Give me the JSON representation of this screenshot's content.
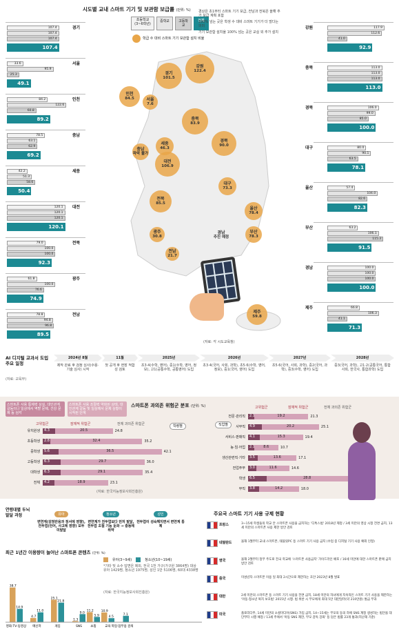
{
  "header": {
    "title": "시도별 교내 스마트 기기 및 보관함 보급률",
    "unit": "(단위: %)"
  },
  "legend": {
    "el": "초등학교 (3~6학년)",
    "mid": "중학교",
    "high": "고등학교",
    "all": "전체",
    "circle": "학급 수 대비 스마트 기기 보관함 설치 비율",
    "notes": [
      "경상은 초1부터 스마트 기기 보급, 전남과 전북은 올해 추가 보급 계획 포함",
      "100% 넘는 곳은 학생 수 대비 스마트 기기가 더 많다는 의미",
      "기기 보관함 설치율 100% 넘는 곳은 교실 외 추가 설치"
    ]
  },
  "regions_left": [
    {
      "name": "경기",
      "v": [
        "107.4",
        "107.4",
        "107.4"
      ],
      "all": "107.4"
    },
    {
      "name": "서울",
      "v": [
        "33.6",
        "95.9",
        "25.3"
      ],
      "all": "49.1"
    },
    {
      "name": "인천",
      "v": [
        "84.2",
        "122.6",
        "60.8"
      ],
      "all": "89.2"
    },
    {
      "name": "충남",
      "v": [
        "78.5",
        "63.1",
        "62.9"
      ],
      "all": "69.2"
    },
    {
      "name": "세종",
      "v": [
        "42.2",
        "51.3",
        "58.6"
      ],
      "all": "50.4"
    },
    {
      "name": "대전",
      "v": [
        "120.1",
        "120.1",
        "120.1"
      ],
      "all": "120.1"
    },
    {
      "name": "전북",
      "v": [
        "79.0",
        "100.0",
        "100.0"
      ],
      "all": "92.3"
    },
    {
      "name": "광주",
      "v": [
        "61.8",
        "100.0",
        "76.6"
      ],
      "all": "74.9"
    },
    {
      "name": "전남",
      "v": [
        "78.8",
        "94.8",
        "96.8"
      ],
      "all": "89.5"
    }
  ],
  "regions_right": [
    {
      "name": "강원",
      "v": [
        "117.9",
        "112.6",
        "41.0"
      ],
      "all": "92.9"
    },
    {
      "name": "충북",
      "v": [
        "113.0",
        "113.0",
        "113.0"
      ],
      "all": "113.0"
    },
    {
      "name": "경북",
      "v": [
        "106.0",
        "99.0",
        "85.0"
      ],
      "all": "100.0"
    },
    {
      "name": "대구",
      "v": [
        "80.0",
        "90.1",
        "63.5"
      ],
      "all": "78.1"
    },
    {
      "name": "울산",
      "v": [
        "57.4",
        "104.0",
        "82.6"
      ],
      "all": "82.3"
    },
    {
      "name": "부산",
      "v": [
        "63.2",
        "106.1",
        "115.3"
      ],
      "all": "91.5"
    },
    {
      "name": "경남",
      "v": [
        "100.0",
        "100.0",
        "100.0"
      ],
      "all": "100.0"
    },
    {
      "name": "제주",
      "v": [
        "66.8",
        "106.3",
        "41.1"
      ],
      "all": "71.3"
    }
  ],
  "map": [
    {
      "name": "경기",
      "val": "101.5"
    },
    {
      "name": "강원",
      "val": "122.4"
    },
    {
      "name": "인천",
      "val": "84.5"
    },
    {
      "name": "서울",
      "val": "7.6"
    },
    {
      "name": "충북",
      "val": "83.9"
    },
    {
      "name": "세종",
      "val": "46.3"
    },
    {
      "name": "충남",
      "val": "파악 불가"
    },
    {
      "name": "대전",
      "val": "106.9"
    },
    {
      "name": "경북",
      "val": "90.0"
    },
    {
      "name": "대구",
      "val": "73.3"
    },
    {
      "name": "전북",
      "val": "85.5"
    },
    {
      "name": "울산",
      "val": "78.4"
    },
    {
      "name": "경남",
      "val": "추진 예정"
    },
    {
      "name": "부산",
      "val": "78.3"
    },
    {
      "name": "광주",
      "val": "30.8"
    },
    {
      "name": "전남",
      "val": "21.7"
    },
    {
      "name": "제주",
      "val": "59.8"
    }
  ],
  "map_source": "(자료: 각 시도교육청)",
  "ai": {
    "title": "AI 디지털 교과서 도입 주요 일정",
    "source": "(자료: 교육부)",
    "cols": [
      "2024년 8월",
      "11월",
      "2025년",
      "2026년",
      "2027년",
      "2028년"
    ],
    "items": [
      "제작 완료 후 검정 심사(수용·기술 심사) 시작",
      "첫 공개 후 현장 적합성 검토",
      "초3·4(수학, 영어), 중1(수학, 영어, 정보), 고1(공통수학, 공통영어) 도입",
      "초3·4(국어, 사회, 과학), 초5·6(수학, 영어, 정보), 중1(국어, 영어) 도입",
      "초5·6(국어, 사회, 과학), 중2(국어, 과학), 중3(수학, 영어) 도입",
      "중3(국어, 과학), 고1·2(공통국어, 통합사회, 한국사, 통합과학) 도입"
    ]
  },
  "risk": {
    "title": "스마트폰 과의존 위험군 분포",
    "unit": "(단위: %)",
    "label_high": "고위험군",
    "label_latent": "잠재적 위험군",
    "label_total": "전체 과의존 위험군",
    "note1": "스마트폰 사용 통제력 상실, 대인관계 갈등이나 일상에서 역할 문제, 건강 문제 등 심각",
    "note2": "스마트폰 사용 조절력 약화된 상태, 대인관계 갈등 및 일상에서 문제 상황이 시작된 단계",
    "tag_school": "학령별",
    "tag_job": "직업별",
    "source": "(자료: 한국지능정보사회진흥원)",
    "school": [
      {
        "n": "유치원생",
        "h": "4.3",
        "l": "20.5",
        "t": "24.8"
      },
      {
        "n": "초등학생",
        "h": "2.8",
        "l": "32.4",
        "t": "35.2"
      },
      {
        "n": "중학생",
        "h": "5.6",
        "l": "36.5",
        "t": "42.1"
      },
      {
        "n": "고등학생",
        "h": "6.3",
        "l": "29.7",
        "t": "36.0"
      },
      {
        "n": "대학생",
        "h": "6.3",
        "l": "29.1",
        "t": "35.4"
      },
      {
        "n": "전체",
        "h": "4.2",
        "l": "18.9",
        "t": "23.1"
      }
    ],
    "job": [
      {
        "n": "전문·관리직",
        "h": "2.1",
        "l": "19.2",
        "t": "21.3"
      },
      {
        "n": "사무직",
        "h": "4.9",
        "l": "20.2",
        "t": "25.1"
      },
      {
        "n": "서비스·판매직",
        "h": "4.1",
        "l": "15.3",
        "t": "19.4"
      },
      {
        "n": "농·임·어업",
        "h": "2.1",
        "l": "8.6",
        "t": "10.7"
      },
      {
        "n": "생산관련직·기타",
        "h": "3.5",
        "l": "13.6",
        "t": "17.1"
      },
      {
        "n": "전업주부",
        "h": "3.0",
        "l": "11.6",
        "t": "14.6"
      },
      {
        "n": "학생",
        "h": "6.5",
        "l": "28.8",
        "t": "35.3"
      },
      {
        "n": "무직",
        "h": "3.8",
        "l": "14.2",
        "t": "18.0"
      }
    ]
  },
  "dev": {
    "title": "연령대별 두뇌 발달 과정",
    "groups": [
      {
        "label": "유아",
        "text": "변연계(감정반응과 정서에 영향), 전두엽(언어, 사고에 영향) 모두 미발달"
      },
      {
        "label": "청소년",
        "text": "변연계가 전두엽보다 먼저 발달, 전두엽 조절 기능 둔화 → 충동에 취약"
      },
      {
        "label": "성인",
        "text": "전두엽이 성숙해지면서 변연계 통제"
      }
    ]
  },
  "content": {
    "title": "최근 1년간 이용량이 늘어난 스마트폰 콘텐츠",
    "unit": "(단위: %)",
    "leg1": "유아(3~9세)",
    "leg2": "청소년(10~19세)",
    "note": "*기타 및 소수 답변은 제외, 전국 1천 가구(가구원 3864명) 대상 유아 1429명, 청소년 1975명, 성인 1만 5106명, 60대 4338명",
    "source": "(자료: 한국지능정보사회진흥원)",
    "cats": [
      "영화·TV·동영상",
      "메신저",
      "게임",
      "SNS",
      "쇼핑",
      "교육",
      "학업·업무용 검색"
    ],
    "a": [
      38.7,
      4.7,
      25.1,
      1.3,
      11.2,
      10.9,
      0
    ],
    "b": [
      14.9,
      11.0,
      21.8,
      9.0,
      5.9,
      4.5,
      7.1
    ]
  },
  "reg": {
    "title": "주요국 스마트 기기 사용 규제 현황",
    "rows": [
      {
        "c": "프랑스",
        "t": "3~15세 학생들의 학교 안 스마트폰 사용을 금지하는 '디톡스법' 2018년 제정 / 3세 미만의 영상 시청 전면 금지, 13세 미만의 스마트폰 사용 제한 방안 검토"
      },
      {
        "c": "네덜란드",
        "t": "올해 1월부터 교내 스마트폰, 태블릿PC 등 스마트 기기 사용 금지 (수업 중 디지털 기기 사용 예외 인정)"
      },
      {
        "c": "영국",
        "t": "올해 2월부터 정부 주도로 전국 학교에 '스마트폰 사용금지' 가이드라인 배포 / 16세 미만에 대한 스마트폰 판매 금지 방안 검토"
      },
      {
        "c": "중국",
        "t": "미성년자 스마트폰 이용 일 최대 2시간으로 제한하는 초안 2023년 8월 발표"
      },
      {
        "c": "대만",
        "t": "2세 미만의 스마트폰 등 스마트 기기 사용을 전면 금지, 18세 미만의 자녀에게 지속적인 스마트 기기 사용을 제한하는 '아동·청소년 복지 보호법' 2015년 시행. 법 위반 시 부모에게 최대 5만 대만달러(약 210만원) 벌금 부과"
      },
      {
        "c": "미국",
        "t": "플로리다주, 14세 미만의 소셜미디어(SNS) 가입 금지, 14~15세는 부모의 동의 하에 SNS 계정 생성하는 법안을 대단부터 시행 예정 / 13세 주에서 '아동 SNS 제한, 부모 감독 강화' 등 담은 법률 23개 통과(지난해 기준)"
      }
    ]
  }
}
